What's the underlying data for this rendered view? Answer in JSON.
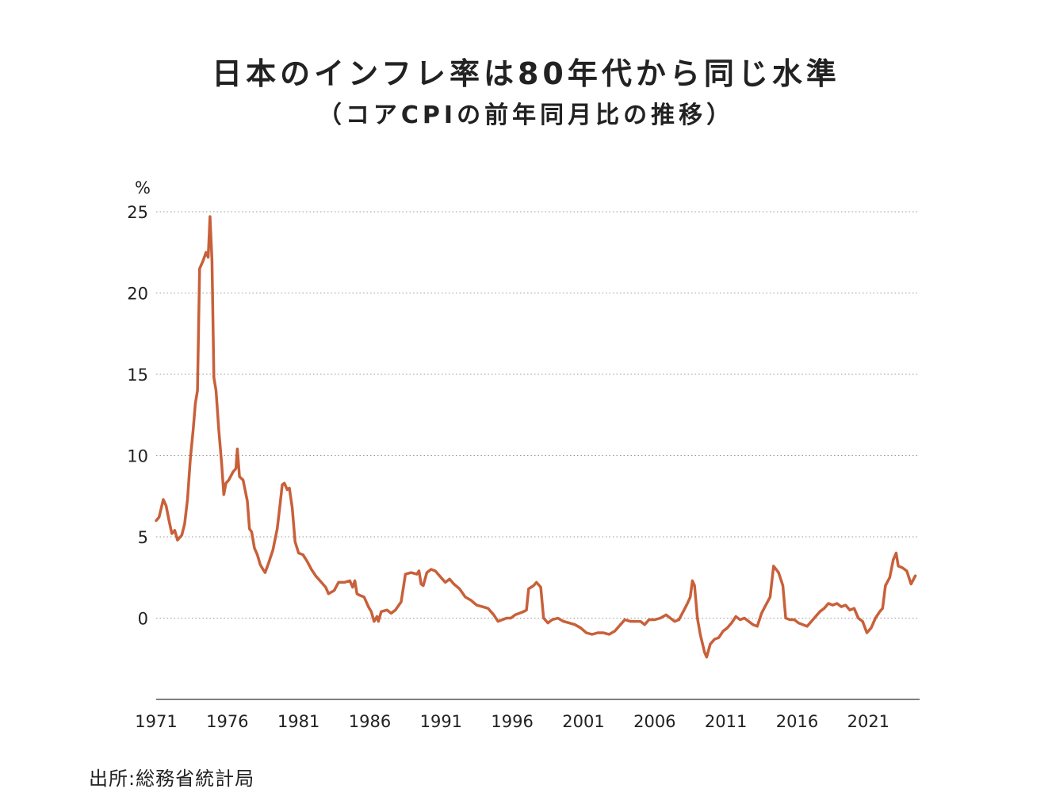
{
  "title": "日本のインフレ率は80年代から同じ水準",
  "subtitle": "（コアCPIの前年同月比の推移）",
  "source": "出所:総務省統計局",
  "chart_data": {
    "type": "line",
    "title": "日本のインフレ率は80年代から同じ水準",
    "subtitle": "（コアCPIの前年同月比の推移）",
    "ylabel": "%",
    "xlabel": "",
    "xlim": [
      1971,
      2024.6
    ],
    "ylim": [
      -5,
      25
    ],
    "yticks": [
      25,
      20,
      15,
      10,
      5,
      0
    ],
    "xticks": [
      1971,
      1976,
      1981,
      1986,
      1991,
      1996,
      2001,
      2006,
      2011,
      2016,
      2021
    ],
    "grid": "horizontal dotted",
    "line_color": "#c8603a",
    "series": [
      {
        "name": "",
        "points": [
          [
            1971.0,
            6.0
          ],
          [
            1971.2,
            6.2
          ],
          [
            1971.5,
            7.3
          ],
          [
            1971.7,
            6.9
          ],
          [
            1971.9,
            6.0
          ],
          [
            1972.1,
            5.2
          ],
          [
            1972.3,
            5.4
          ],
          [
            1972.5,
            4.8
          ],
          [
            1972.8,
            5.1
          ],
          [
            1973.0,
            5.8
          ],
          [
            1973.2,
            7.3
          ],
          [
            1973.4,
            9.8
          ],
          [
            1973.6,
            11.6
          ],
          [
            1973.75,
            13.2
          ],
          [
            1973.9,
            14.0
          ],
          [
            1974.05,
            21.5
          ],
          [
            1974.3,
            22.0
          ],
          [
            1974.5,
            22.5
          ],
          [
            1974.65,
            22.2
          ],
          [
            1974.78,
            24.7
          ],
          [
            1974.92,
            22.0
          ],
          [
            1975.05,
            14.8
          ],
          [
            1975.2,
            14.0
          ],
          [
            1975.4,
            11.5
          ],
          [
            1975.6,
            9.5
          ],
          [
            1975.75,
            7.6
          ],
          [
            1975.9,
            8.3
          ],
          [
            1976.1,
            8.5
          ],
          [
            1976.4,
            9.0
          ],
          [
            1976.6,
            9.2
          ],
          [
            1976.7,
            10.4
          ],
          [
            1976.85,
            8.7
          ],
          [
            1977.1,
            8.5
          ],
          [
            1977.4,
            7.2
          ],
          [
            1977.55,
            5.5
          ],
          [
            1977.7,
            5.3
          ],
          [
            1977.9,
            4.3
          ],
          [
            1978.1,
            3.9
          ],
          [
            1978.3,
            3.3
          ],
          [
            1978.5,
            3.0
          ],
          [
            1978.65,
            2.8
          ],
          [
            1978.9,
            3.4
          ],
          [
            1979.2,
            4.2
          ],
          [
            1979.5,
            5.5
          ],
          [
            1979.7,
            7.0
          ],
          [
            1979.85,
            8.2
          ],
          [
            1980.0,
            8.3
          ],
          [
            1980.2,
            7.9
          ],
          [
            1980.35,
            8.0
          ],
          [
            1980.55,
            6.8
          ],
          [
            1980.75,
            4.7
          ],
          [
            1981.0,
            4.0
          ],
          [
            1981.3,
            3.9
          ],
          [
            1981.6,
            3.5
          ],
          [
            1981.9,
            3.0
          ],
          [
            1982.2,
            2.6
          ],
          [
            1982.6,
            2.2
          ],
          [
            1982.9,
            1.9
          ],
          [
            1983.1,
            1.5
          ],
          [
            1983.5,
            1.7
          ],
          [
            1983.8,
            2.2
          ],
          [
            1984.2,
            2.2
          ],
          [
            1984.6,
            2.3
          ],
          [
            1984.8,
            1.9
          ],
          [
            1984.95,
            2.3
          ],
          [
            1985.1,
            1.5
          ],
          [
            1985.3,
            1.4
          ],
          [
            1985.6,
            1.3
          ],
          [
            1985.9,
            0.7
          ],
          [
            1986.1,
            0.4
          ],
          [
            1986.3,
            -0.2
          ],
          [
            1986.5,
            0.1
          ],
          [
            1986.6,
            -0.2
          ],
          [
            1986.8,
            0.4
          ],
          [
            1987.2,
            0.5
          ],
          [
            1987.5,
            0.3
          ],
          [
            1987.8,
            0.5
          ],
          [
            1988.2,
            1.0
          ],
          [
            1988.5,
            2.7
          ],
          [
            1988.9,
            2.8
          ],
          [
            1989.3,
            2.7
          ],
          [
            1989.45,
            2.9
          ],
          [
            1989.6,
            2.1
          ],
          [
            1989.75,
            2.0
          ],
          [
            1990.0,
            2.8
          ],
          [
            1990.3,
            3.0
          ],
          [
            1990.6,
            2.9
          ],
          [
            1991.0,
            2.5
          ],
          [
            1991.3,
            2.2
          ],
          [
            1991.6,
            2.4
          ],
          [
            1991.9,
            2.1
          ],
          [
            1992.3,
            1.8
          ],
          [
            1992.7,
            1.3
          ],
          [
            1993.1,
            1.1
          ],
          [
            1993.5,
            0.8
          ],
          [
            1993.9,
            0.7
          ],
          [
            1994.3,
            0.6
          ],
          [
            1994.7,
            0.2
          ],
          [
            1995.0,
            -0.2
          ],
          [
            1995.3,
            -0.1
          ],
          [
            1995.6,
            0.0
          ],
          [
            1995.9,
            0.0
          ],
          [
            1996.2,
            0.2
          ],
          [
            1996.5,
            0.3
          ],
          [
            1996.8,
            0.4
          ],
          [
            1997.0,
            0.5
          ],
          [
            1997.15,
            1.8
          ],
          [
            1997.5,
            2.0
          ],
          [
            1997.7,
            2.2
          ],
          [
            1998.0,
            1.9
          ],
          [
            1998.2,
            0.0
          ],
          [
            1998.5,
            -0.3
          ],
          [
            1998.8,
            -0.1
          ],
          [
            1999.2,
            0.0
          ],
          [
            1999.6,
            -0.2
          ],
          [
            2000.0,
            -0.3
          ],
          [
            2000.4,
            -0.4
          ],
          [
            2000.8,
            -0.6
          ],
          [
            2001.2,
            -0.9
          ],
          [
            2001.6,
            -1.0
          ],
          [
            2002.0,
            -0.9
          ],
          [
            2002.4,
            -0.9
          ],
          [
            2002.8,
            -1.0
          ],
          [
            2003.2,
            -0.8
          ],
          [
            2003.6,
            -0.4
          ],
          [
            2003.9,
            -0.1
          ],
          [
            2004.3,
            -0.2
          ],
          [
            2004.7,
            -0.2
          ],
          [
            2005.0,
            -0.2
          ],
          [
            2005.3,
            -0.4
          ],
          [
            2005.6,
            -0.1
          ],
          [
            2006.0,
            -0.1
          ],
          [
            2006.4,
            0.0
          ],
          [
            2006.8,
            0.2
          ],
          [
            2007.1,
            0.0
          ],
          [
            2007.4,
            -0.2
          ],
          [
            2007.7,
            -0.1
          ],
          [
            2008.0,
            0.4
          ],
          [
            2008.3,
            0.9
          ],
          [
            2008.5,
            1.3
          ],
          [
            2008.65,
            2.3
          ],
          [
            2008.8,
            2.0
          ],
          [
            2009.0,
            0.0
          ],
          [
            2009.2,
            -1.0
          ],
          [
            2009.5,
            -2.1
          ],
          [
            2009.65,
            -2.4
          ],
          [
            2009.9,
            -1.6
          ],
          [
            2010.2,
            -1.3
          ],
          [
            2010.5,
            -1.2
          ],
          [
            2010.8,
            -0.8
          ],
          [
            2011.1,
            -0.6
          ],
          [
            2011.4,
            -0.3
          ],
          [
            2011.7,
            0.1
          ],
          [
            2012.0,
            -0.1
          ],
          [
            2012.3,
            0.0
          ],
          [
            2012.6,
            -0.2
          ],
          [
            2012.9,
            -0.4
          ],
          [
            2013.2,
            -0.5
          ],
          [
            2013.5,
            0.3
          ],
          [
            2013.8,
            0.8
          ],
          [
            2014.1,
            1.3
          ],
          [
            2014.35,
            3.2
          ],
          [
            2014.7,
            2.8
          ],
          [
            2015.0,
            2.0
          ],
          [
            2015.2,
            0.0
          ],
          [
            2015.5,
            -0.1
          ],
          [
            2015.8,
            -0.1
          ],
          [
            2016.1,
            -0.3
          ],
          [
            2016.4,
            -0.4
          ],
          [
            2016.7,
            -0.5
          ],
          [
            2017.0,
            -0.2
          ],
          [
            2017.3,
            0.1
          ],
          [
            2017.6,
            0.4
          ],
          [
            2017.9,
            0.6
          ],
          [
            2018.2,
            0.9
          ],
          [
            2018.5,
            0.8
          ],
          [
            2018.8,
            0.9
          ],
          [
            2019.1,
            0.7
          ],
          [
            2019.4,
            0.8
          ],
          [
            2019.7,
            0.5
          ],
          [
            2020.0,
            0.6
          ],
          [
            2020.3,
            0.0
          ],
          [
            2020.6,
            -0.2
          ],
          [
            2020.9,
            -0.9
          ],
          [
            2021.2,
            -0.6
          ],
          [
            2021.5,
            0.0
          ],
          [
            2021.8,
            0.4
          ],
          [
            2022.0,
            0.6
          ],
          [
            2022.2,
            2.0
          ],
          [
            2022.5,
            2.5
          ],
          [
            2022.75,
            3.6
          ],
          [
            2022.95,
            4.0
          ],
          [
            2023.1,
            3.2
          ],
          [
            2023.4,
            3.1
          ],
          [
            2023.7,
            2.9
          ],
          [
            2024.0,
            2.1
          ],
          [
            2024.3,
            2.6
          ]
        ]
      }
    ]
  }
}
